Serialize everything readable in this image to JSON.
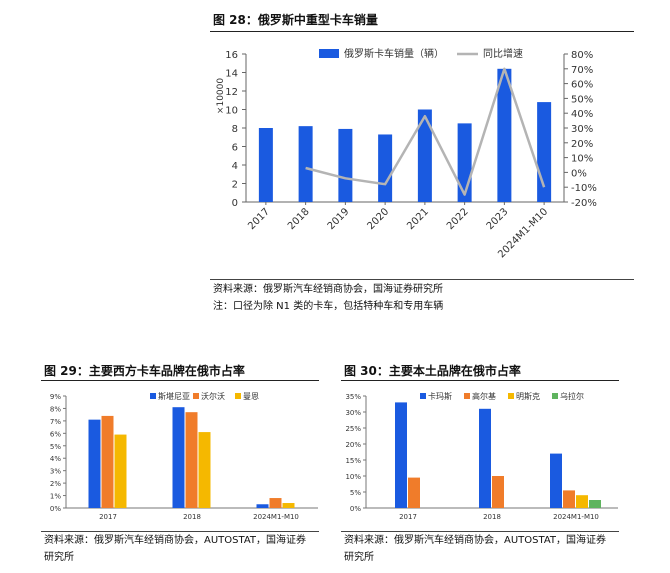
{
  "figures": [
    {
      "title": "图 28：俄罗斯中重型卡车销量",
      "source": "资料来源：俄罗斯汽车经销商协会，国海证券研究所",
      "note": "注：口径为除 N1 类的卡车，包括特种车和专用车辆"
    },
    {
      "title": "图 29：主要西方卡车品牌在俄市占率",
      "source_line1": "资料来源：俄罗斯汽车经销商协会，AUTOSTAT，国海证券",
      "source_line2": "研究所"
    },
    {
      "title": "图 30：主要本土品牌在俄市占率",
      "source_line1": "资料来源：俄罗斯汽车经销商协会，AUTOSTAT，国海证券",
      "source_line2": "研究所"
    }
  ],
  "chart_data": [
    {
      "type": "bar",
      "categories": [
        "2017",
        "2018",
        "2019",
        "2020",
        "2021",
        "2022",
        "2023",
        "2024M1-M10"
      ],
      "series": [
        {
          "name": "俄罗斯卡车销量（辆）",
          "type": "bar",
          "axis": "left",
          "color": "#1a5ae0",
          "values": [
            8.0,
            8.2,
            7.9,
            7.3,
            10.0,
            8.5,
            14.4,
            10.8
          ]
        },
        {
          "name": "同比增速",
          "type": "line",
          "axis": "right",
          "color": "#b4b4b4",
          "values": [
            null,
            3,
            -4,
            -8,
            38,
            -15,
            70,
            -10
          ]
        }
      ],
      "yunit": "×10000",
      "ylim": [
        0,
        16
      ],
      "yticks": [
        "0",
        "2",
        "4",
        "6",
        "8",
        "10",
        "12",
        "14",
        "16"
      ],
      "y2lim": [
        -20,
        80
      ],
      "y2ticks": [
        "-20%",
        "-10%",
        "0%",
        "10%",
        "20%",
        "30%",
        "40%",
        "50%",
        "60%",
        "70%",
        "80%"
      ],
      "grid": false,
      "legend": "top"
    },
    {
      "type": "bar",
      "categories": [
        "2017",
        "2018",
        "2024M1-M10"
      ],
      "series": [
        {
          "name": "斯堪尼亚",
          "color": "#1a5ae0",
          "values": [
            7.1,
            8.1,
            0.3
          ]
        },
        {
          "name": "沃尔沃",
          "color": "#f07c2a",
          "values": [
            7.4,
            7.7,
            0.8
          ]
        },
        {
          "name": "曼恩",
          "color": "#f5b800",
          "values": [
            5.9,
            6.1,
            0.4
          ]
        }
      ],
      "ylim": [
        0,
        9
      ],
      "yticks": [
        "0%",
        "1%",
        "2%",
        "3%",
        "4%",
        "5%",
        "6%",
        "7%",
        "8%",
        "9%"
      ],
      "grid": false,
      "legend": "top"
    },
    {
      "type": "bar",
      "categories": [
        "2017",
        "2018",
        "2024M1-M10"
      ],
      "series": [
        {
          "name": "卡玛斯",
          "color": "#1a5ae0",
          "values": [
            33,
            31,
            17
          ]
        },
        {
          "name": "高尔基",
          "color": "#f07c2a",
          "values": [
            9.5,
            10,
            5.5
          ]
        },
        {
          "name": "明斯克",
          "color": "#f5b800",
          "values": [
            null,
            null,
            4
          ]
        },
        {
          "name": "乌拉尔",
          "color": "#5fb45f",
          "values": [
            null,
            null,
            2.5
          ]
        }
      ],
      "ylim": [
        0,
        35
      ],
      "yticks": [
        "0%",
        "5%",
        "10%",
        "15%",
        "20%",
        "25%",
        "30%",
        "35%"
      ],
      "grid": false,
      "legend": "top"
    }
  ]
}
